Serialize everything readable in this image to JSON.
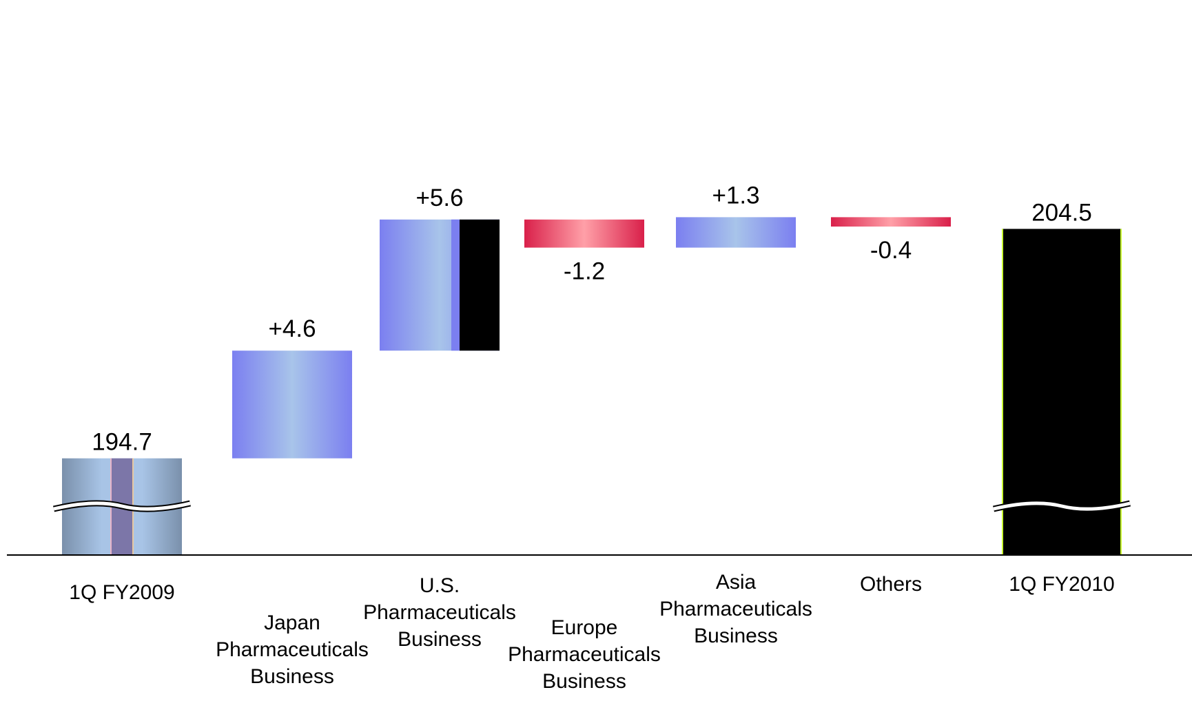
{
  "chart_data": {
    "type": "bar",
    "subtype": "waterfall",
    "title": "",
    "xlabel": "",
    "ylabel": "",
    "axis_break": true,
    "grid": false,
    "legend": "none",
    "steps": [
      {
        "kind": "total",
        "value": 194.7,
        "label": "194.7",
        "category": [
          "1Q FY2009"
        ]
      },
      {
        "kind": "delta",
        "value": 4.6,
        "label": "+4.6",
        "category": [
          "Japan",
          "Pharmaceuticals",
          "Business"
        ]
      },
      {
        "kind": "delta",
        "value": 5.6,
        "label": "+5.6",
        "category": [
          "U.S.",
          "Pharmaceuticals",
          "Business"
        ]
      },
      {
        "kind": "delta",
        "value": -1.2,
        "label": "-1.2",
        "category": [
          "Europe",
          "Pharmaceuticals",
          "Business"
        ]
      },
      {
        "kind": "delta",
        "value": 1.3,
        "label": "+1.3",
        "category": [
          "Asia",
          "Pharmaceuticals",
          "Business"
        ]
      },
      {
        "kind": "delta",
        "value": -0.4,
        "label": "-0.4",
        "category": [
          "Others"
        ]
      },
      {
        "kind": "total",
        "value": 204.5,
        "label": "204.5",
        "category": [
          "1Q FY2010"
        ]
      }
    ],
    "colors": {
      "increase_edge": "#7b7ff0",
      "increase_mid": "#a8c4ea",
      "decrease_edge": "#d9204a",
      "decrease_mid": "#ffa0a8",
      "start_edge": "#7a90ab",
      "start_mid": "#a8c4e6",
      "start_stripe": "#7c76a8",
      "end_fill": "#000000",
      "end_edge": "#c8ff30",
      "axis": "#000000"
    }
  }
}
